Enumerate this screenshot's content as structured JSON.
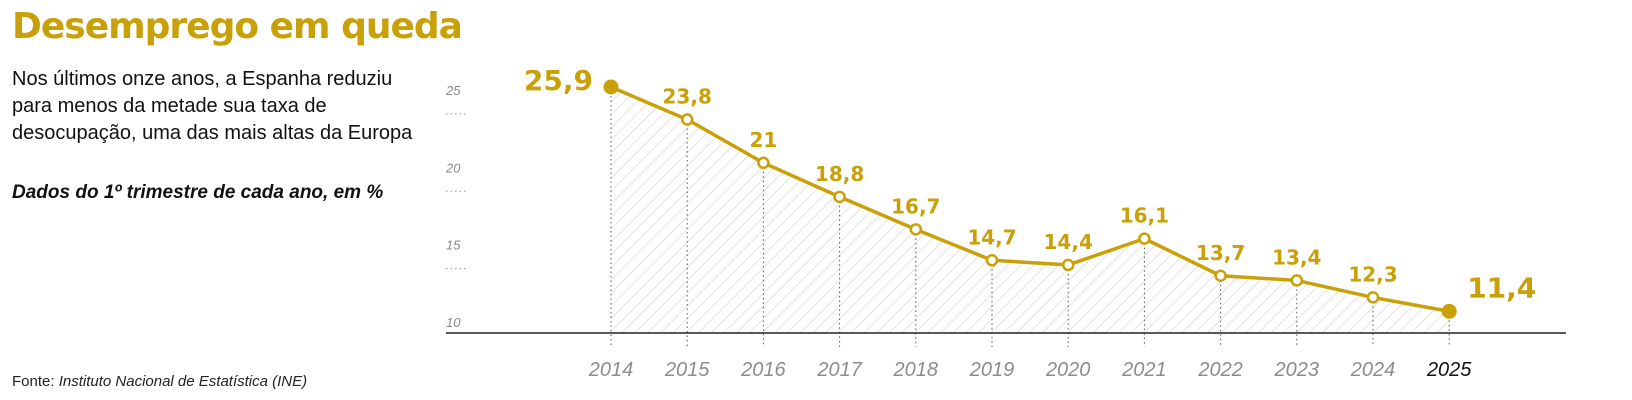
{
  "header": {
    "title": "Desemprego em queda",
    "subtitle": "Nos últimos onze anos, a Espanha reduziu para menos da metade sua taxa de desocupação, uma das mais altas da Europa",
    "note": "Dados do 1º trimestre de cada ano, em %"
  },
  "footer": {
    "source_prefix": "Fonte:",
    "source_name": "Instituto Nacional de Estatística (INE)"
  },
  "colors": {
    "accent": "#c9a007",
    "text": "#111111",
    "muted": "#8c8c8c"
  },
  "chart_data": {
    "type": "area",
    "title": "Desemprego em queda",
    "x": [
      "2014",
      "2015",
      "2016",
      "2017",
      "2018",
      "2019",
      "2020",
      "2021",
      "2022",
      "2023",
      "2024",
      "2025"
    ],
    "series": [
      {
        "values": [
          25.9,
          23.8,
          21,
          18.8,
          16.7,
          14.7,
          14.4,
          16.1,
          13.7,
          13.4,
          12.3,
          11.4
        ],
        "labels": [
          "25,9",
          "23,8",
          "21",
          "18,8",
          "16,7",
          "14,7",
          "14,4",
          "16,1",
          "13,7",
          "13,4",
          "12,3",
          "11,4"
        ]
      }
    ],
    "y_ticks": [
      10,
      15,
      20,
      25
    ],
    "ylim": [
      10,
      26
    ],
    "grid": false,
    "legend": "none"
  }
}
